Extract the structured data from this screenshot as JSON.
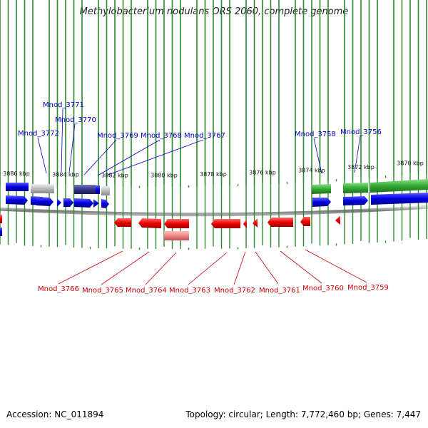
{
  "title": "Methylobacterium nodulans ORS 2060, complete genome",
  "accession": "Accession: NC_011894",
  "stats": "Topology: circular; Length: 7,772,460 bp; Genes: 7,447",
  "ticks": [
    "3886 kbp",
    "3884 kbp",
    "3882 kbp",
    "3880 kbp",
    "3878 kbp",
    "3876 kbp",
    "3874 kbp",
    "3872 kbp",
    "3870 kbp"
  ],
  "forward_genes": [
    "Mnod_3772",
    "Mnod_3771",
    "Mnod_3770",
    "Mnod_3769",
    "Mnod_3768",
    "Mnod_3767",
    "Mnod_3758",
    "Mnod_3756"
  ],
  "reverse_genes": [
    "Mnod_3766",
    "Mnod_3765",
    "Mnod_3764",
    "Mnod_3763",
    "Mnod_3762",
    "Mnod_3761",
    "Mnod_3760",
    "Mnod_3759"
  ],
  "colors": {
    "forward": "#0000dd",
    "reverse": "#ee0000",
    "ticks": "#2e8b2e",
    "backbone": "#888888",
    "green_feature": "#33aa33",
    "gray_feature": "#bbbbbb",
    "navy_feature": "#333388",
    "pink_feature": "#ee8888"
  }
}
